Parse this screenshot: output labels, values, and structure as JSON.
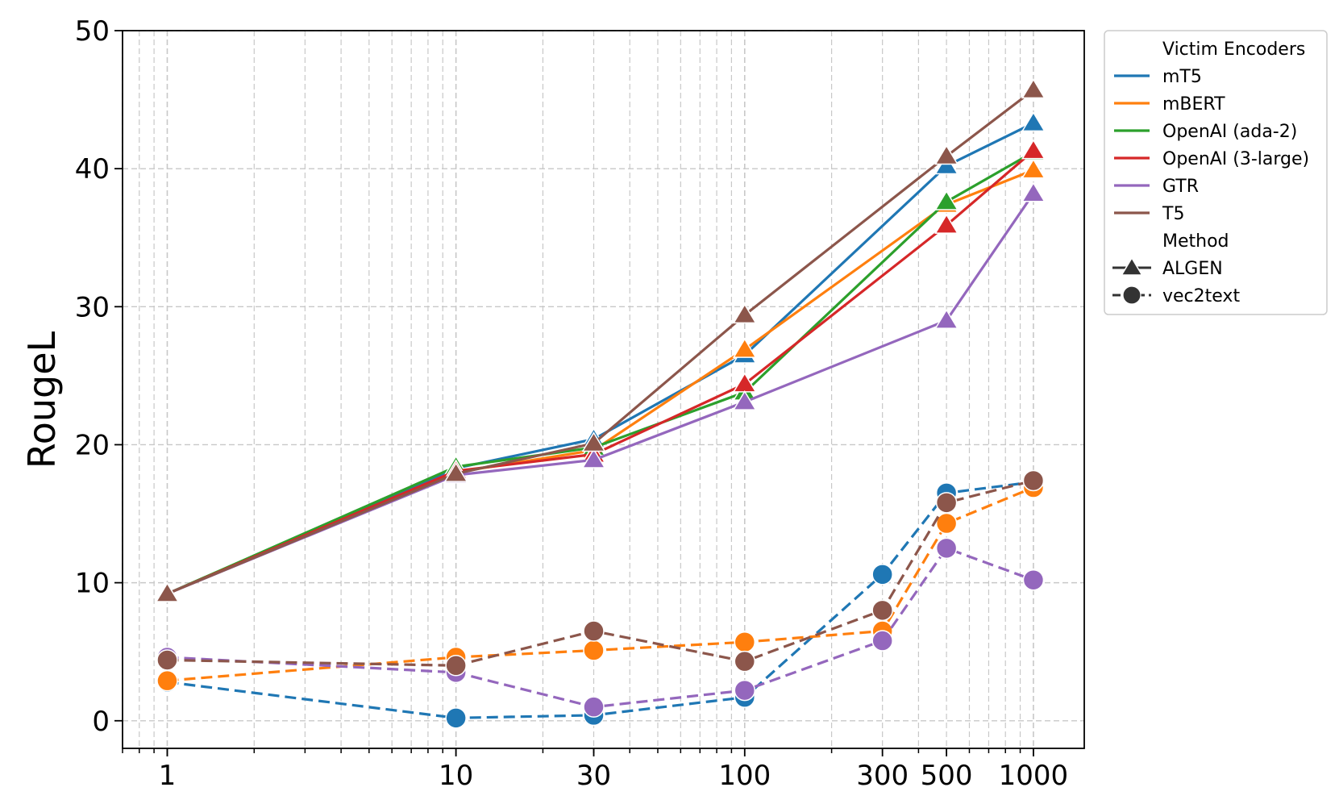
{
  "chart_data": {
    "type": "line",
    "title": "",
    "xlabel": "",
    "ylabel": "RougeL",
    "xscale": "log",
    "xlim": [
      0.7,
      1500
    ],
    "ylim": [
      -2,
      50
    ],
    "grid": true,
    "x_ticks": [
      1,
      10,
      30,
      100,
      300,
      500,
      1000
    ],
    "x_tick_labels": [
      "1",
      "10",
      "30",
      "100",
      "300",
      "500",
      "1000"
    ],
    "y_ticks": [
      0,
      10,
      20,
      30,
      40,
      50
    ],
    "y_tick_labels": [
      "0",
      "10",
      "20",
      "30",
      "40",
      "50"
    ],
    "legend": {
      "position": "outside-top-right",
      "encoder_title": "Victim Encoders",
      "method_title": "Method",
      "encoders": [
        {
          "name": "mT5",
          "color": "#1f77b4"
        },
        {
          "name": "mBERT",
          "color": "#ff7f0e"
        },
        {
          "name": "OpenAI (ada-2)",
          "color": "#2ca02c"
        },
        {
          "name": "OpenAI (3-large)",
          "color": "#d62728"
        },
        {
          "name": "GTR",
          "color": "#9467bd"
        },
        {
          "name": "T5",
          "color": "#8c564b"
        }
      ],
      "methods": [
        {
          "name": "ALGEN",
          "marker": "triangle",
          "line": "solid"
        },
        {
          "name": "vec2text",
          "marker": "circle",
          "line": "dashed"
        }
      ]
    },
    "series": [
      {
        "name": "mT5",
        "method": "ALGEN",
        "x": [
          1,
          10,
          30,
          100,
          500,
          1000
        ],
        "values": [
          9.2,
          18.3,
          20.4,
          26.5,
          40.2,
          43.3
        ]
      },
      {
        "name": "mBERT",
        "method": "ALGEN",
        "x": [
          1,
          10,
          30,
          100,
          500,
          1000
        ],
        "values": [
          9.2,
          18.0,
          19.6,
          26.9,
          37.4,
          39.9
        ]
      },
      {
        "name": "OpenAI (ada-2)",
        "method": "ALGEN",
        "x": [
          1,
          10,
          30,
          100,
          500,
          1000
        ],
        "values": [
          9.2,
          18.4,
          19.8,
          23.8,
          37.6,
          41.2
        ]
      },
      {
        "name": "OpenAI (3-large)",
        "method": "ALGEN",
        "x": [
          1,
          10,
          30,
          100,
          500,
          1000
        ],
        "values": [
          9.2,
          18.1,
          19.3,
          24.4,
          35.9,
          41.3
        ]
      },
      {
        "name": "GTR",
        "method": "ALGEN",
        "x": [
          1,
          10,
          30,
          100,
          500,
          1000
        ],
        "values": [
          9.2,
          17.8,
          18.9,
          23.1,
          29.0,
          38.2
        ]
      },
      {
        "name": "T5",
        "method": "ALGEN",
        "x": [
          1,
          10,
          30,
          100,
          500,
          1000
        ],
        "values": [
          9.2,
          17.9,
          20.1,
          29.4,
          40.9,
          45.7
        ]
      },
      {
        "name": "mT5",
        "method": "vec2text",
        "x": [
          1,
          10,
          30,
          100,
          300,
          500,
          1000
        ],
        "values": [
          2.8,
          0.2,
          0.4,
          1.7,
          10.6,
          16.5,
          17.3
        ]
      },
      {
        "name": "mBERT",
        "method": "vec2text",
        "x": [
          1,
          10,
          30,
          100,
          300,
          500,
          1000
        ],
        "values": [
          2.9,
          4.6,
          5.1,
          5.7,
          6.5,
          14.3,
          16.9
        ]
      },
      {
        "name": "GTR",
        "method": "vec2text",
        "x": [
          1,
          10,
          30,
          100,
          300,
          500,
          1000
        ],
        "values": [
          4.6,
          3.5,
          1.0,
          2.2,
          5.8,
          12.5,
          10.2
        ]
      },
      {
        "name": "T5",
        "method": "vec2text",
        "x": [
          1,
          10,
          30,
          100,
          300,
          500,
          1000
        ],
        "values": [
          4.4,
          4.0,
          6.5,
          4.3,
          8.0,
          15.8,
          17.4
        ]
      }
    ]
  }
}
